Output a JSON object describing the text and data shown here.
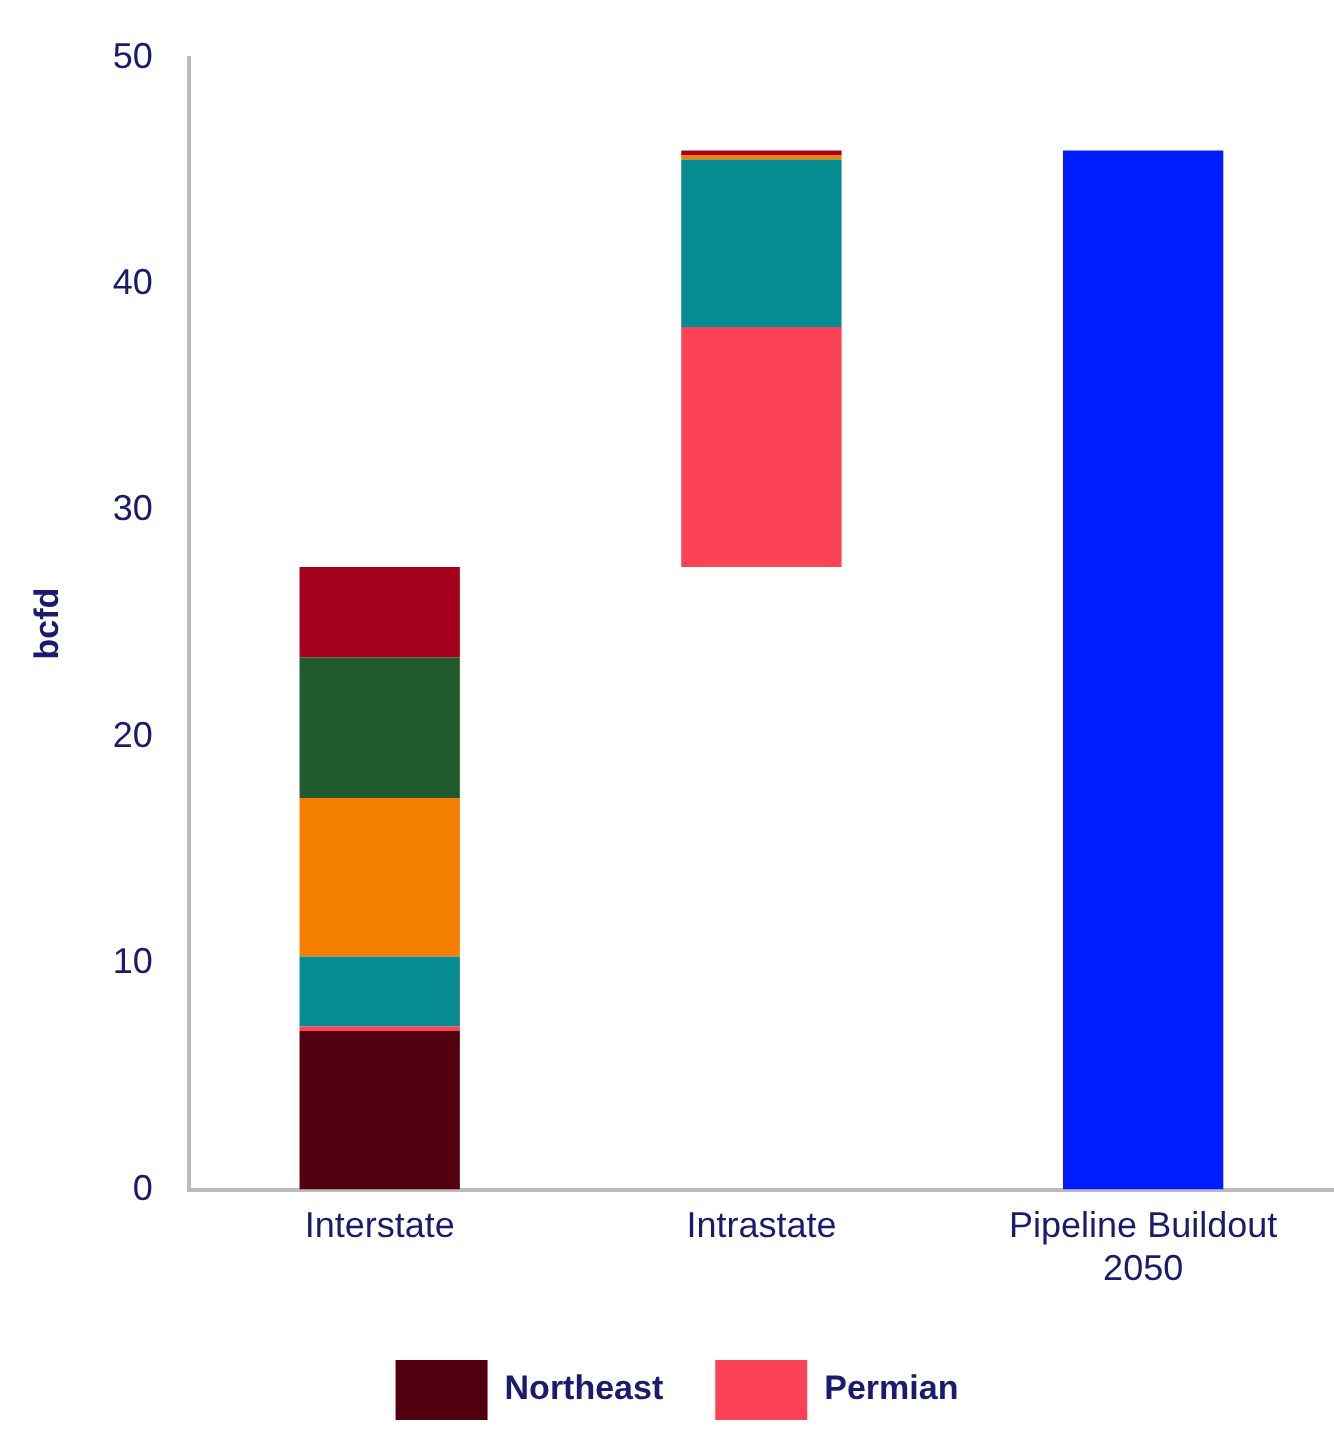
{
  "chart_data": {
    "type": "bar",
    "ylabel": "bcfd",
    "categories": [
      "Interstate",
      "Intrastate",
      "Pipeline Buildout 2050"
    ],
    "series": [
      {
        "name": "Northeast",
        "color": "#520010",
        "values": [
          7.0,
          null,
          null
        ],
        "base": [
          0,
          null,
          null
        ]
      },
      {
        "name": "Permian",
        "color": "#fc4255",
        "values": [
          0.2,
          10.6,
          null
        ],
        "base": [
          7.0,
          27.5,
          null
        ]
      },
      {
        "color": "#068c91",
        "values": [
          3.1,
          7.4,
          null
        ],
        "base": [
          7.2,
          38.1,
          null
        ]
      },
      {
        "color": "#f57f00",
        "values": [
          7.0,
          0.2,
          null
        ],
        "base": [
          10.3,
          45.5,
          null
        ]
      },
      {
        "color": "#215a2d",
        "values": [
          6.2,
          null,
          null
        ],
        "base": [
          17.3,
          null,
          null
        ]
      },
      {
        "color": "#a6001f",
        "values": [
          4.0,
          0.2,
          null
        ],
        "base": [
          23.5,
          45.7,
          null
        ]
      },
      {
        "color": "#001dff",
        "values": [
          null,
          null,
          45.9
        ],
        "base": [
          null,
          null,
          0
        ]
      }
    ],
    "ylim": [
      0,
      50
    ],
    "yticks": [
      0,
      10,
      20,
      30,
      40,
      50
    ],
    "legend": "bottom"
  }
}
